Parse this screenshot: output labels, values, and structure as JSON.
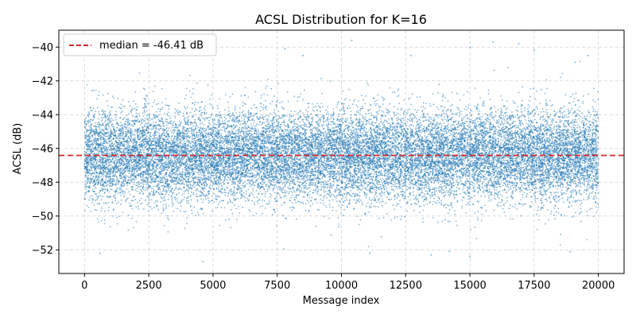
{
  "chart_data": {
    "type": "scatter",
    "title": "ACSL Distribution for K=16",
    "xlabel": "Message index",
    "ylabel": "ACSL (dB)",
    "xlim": [
      -1000,
      21000
    ],
    "ylim": [
      -53.4,
      -39.0
    ],
    "x_ticks": [
      0,
      2500,
      5000,
      7500,
      10000,
      12500,
      15000,
      17500,
      20000
    ],
    "x_tick_labels": [
      "0",
      "2500",
      "5000",
      "7500",
      "10000",
      "12500",
      "15000",
      "17500",
      "20000"
    ],
    "y_ticks": [
      -52,
      -50,
      -48,
      -46,
      -44,
      -42,
      -40
    ],
    "y_tick_labels": [
      "−52",
      "−50",
      "−48",
      "−46",
      "−44",
      "−42",
      "−40"
    ],
    "grid": true,
    "legend_position": "top-left",
    "series": [
      {
        "kind": "scatter",
        "color": "#1f77b4",
        "point_count": 20000,
        "x_range": [
          0,
          20000
        ],
        "y_center": -46.41,
        "y_min": -52.6,
        "y_max": -39.6,
        "sample_points": [
          [
            10400,
            -39.6
          ],
          [
            15900,
            -39.7
          ],
          [
            16900,
            -39.8
          ],
          [
            4600,
            -52.7
          ],
          [
            15000,
            -52.4
          ],
          [
            13500,
            -52.3
          ],
          [
            11100,
            -52.2
          ],
          [
            600,
            -52.2
          ],
          [
            14200,
            -52.1
          ],
          [
            18900,
            -52.1
          ],
          [
            8500,
            -40.5
          ],
          [
            7800,
            -40.1
          ],
          [
            12700,
            -40.5
          ],
          [
            17500,
            -40.2
          ],
          [
            19600,
            -40.5
          ],
          [
            15000,
            -40.0
          ],
          [
            19100,
            -40.9
          ]
        ]
      }
    ],
    "reference_line": {
      "kind": "hline",
      "y": -46.41,
      "color": "#d62728",
      "style": "dashed",
      "label": "median = -46.41 dB"
    }
  }
}
